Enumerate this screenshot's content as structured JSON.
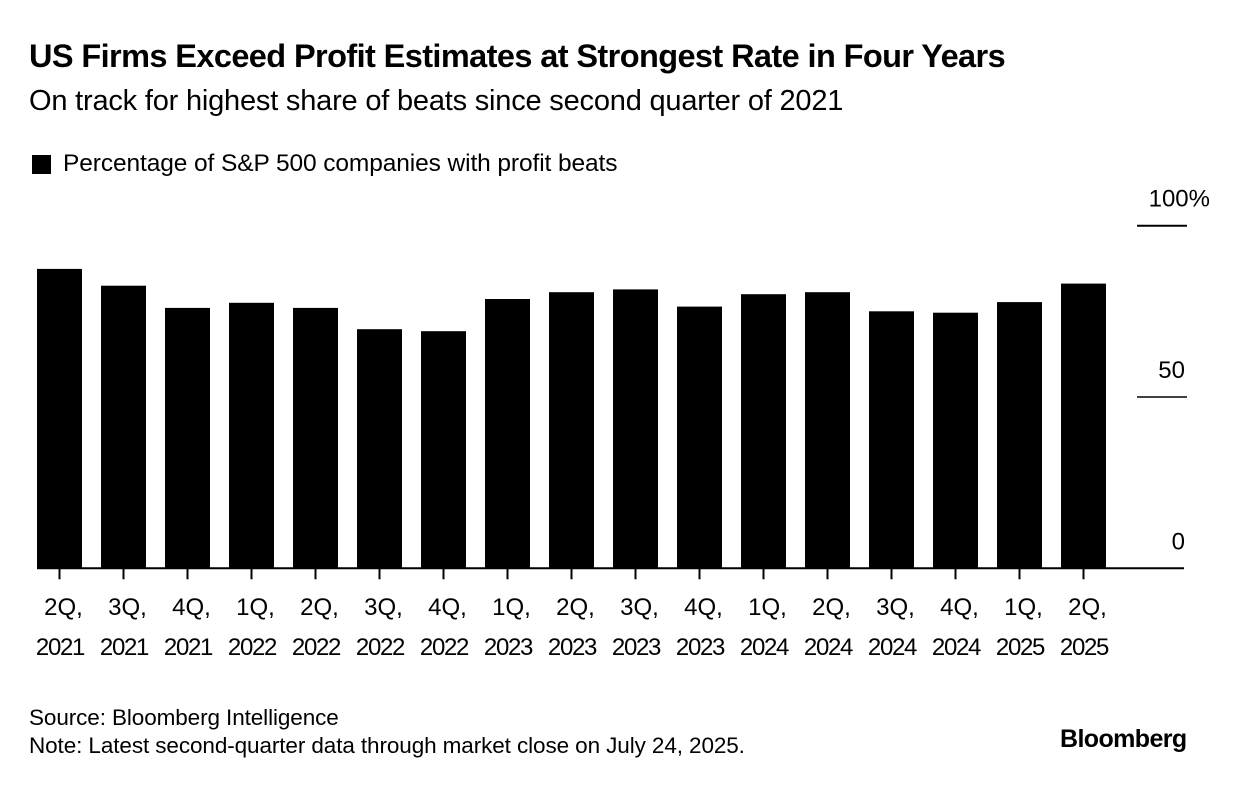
{
  "header": {
    "title": "US Firms Exceed Profit Estimates at Strongest Rate in Four Years",
    "subtitle": "On track for highest share of beats since second quarter of 2021"
  },
  "legend": {
    "items": [
      {
        "label": "Percentage of S&P 500 companies with profit beats",
        "color": "#000000"
      }
    ]
  },
  "chart_data": {
    "type": "bar",
    "title": "US Firms Exceed Profit Estimates at Strongest Rate in Four Years",
    "subtitle": "On track for highest share of beats since second quarter of 2021",
    "xlabel": "",
    "ylabel": "",
    "categories": [
      [
        "2Q,",
        "2021"
      ],
      [
        "3Q,",
        "2021"
      ],
      [
        "4Q,",
        "2021"
      ],
      [
        "1Q,",
        "2022"
      ],
      [
        "2Q,",
        "2022"
      ],
      [
        "3Q,",
        "2022"
      ],
      [
        "4Q,",
        "2022"
      ],
      [
        "1Q,",
        "2023"
      ],
      [
        "2Q,",
        "2023"
      ],
      [
        "3Q,",
        "2023"
      ],
      [
        "4Q,",
        "2023"
      ],
      [
        "1Q,",
        "2024"
      ],
      [
        "2Q,",
        "2024"
      ],
      [
        "3Q,",
        "2024"
      ],
      [
        "4Q,",
        "2024"
      ],
      [
        "1Q,",
        "2025"
      ],
      [
        "2Q,",
        "2025"
      ]
    ],
    "series": [
      {
        "name": "Percentage of S&P 500 companies with profit beats",
        "color": "#000000",
        "values": [
          87.4,
          82.5,
          76.0,
          77.5,
          76.0,
          69.8,
          69.2,
          78.6,
          80.6,
          81.4,
          76.4,
          80.0,
          80.6,
          75.0,
          74.6,
          77.7,
          83.1
        ]
      }
    ],
    "ylim": [
      0,
      100
    ],
    "yticks": [
      {
        "value": 100,
        "label": "100%"
      },
      {
        "value": 50,
        "label": "50"
      },
      {
        "value": 0,
        "label": "0"
      }
    ],
    "y_axis_side": "right",
    "grid": false,
    "legend_position": "top-left"
  },
  "footer": {
    "source": "Source: Bloomberg Intelligence",
    "note": "Note: Latest second-quarter data through market close on July 24, 2025."
  },
  "branding": {
    "logo_text": "Bloomberg"
  }
}
